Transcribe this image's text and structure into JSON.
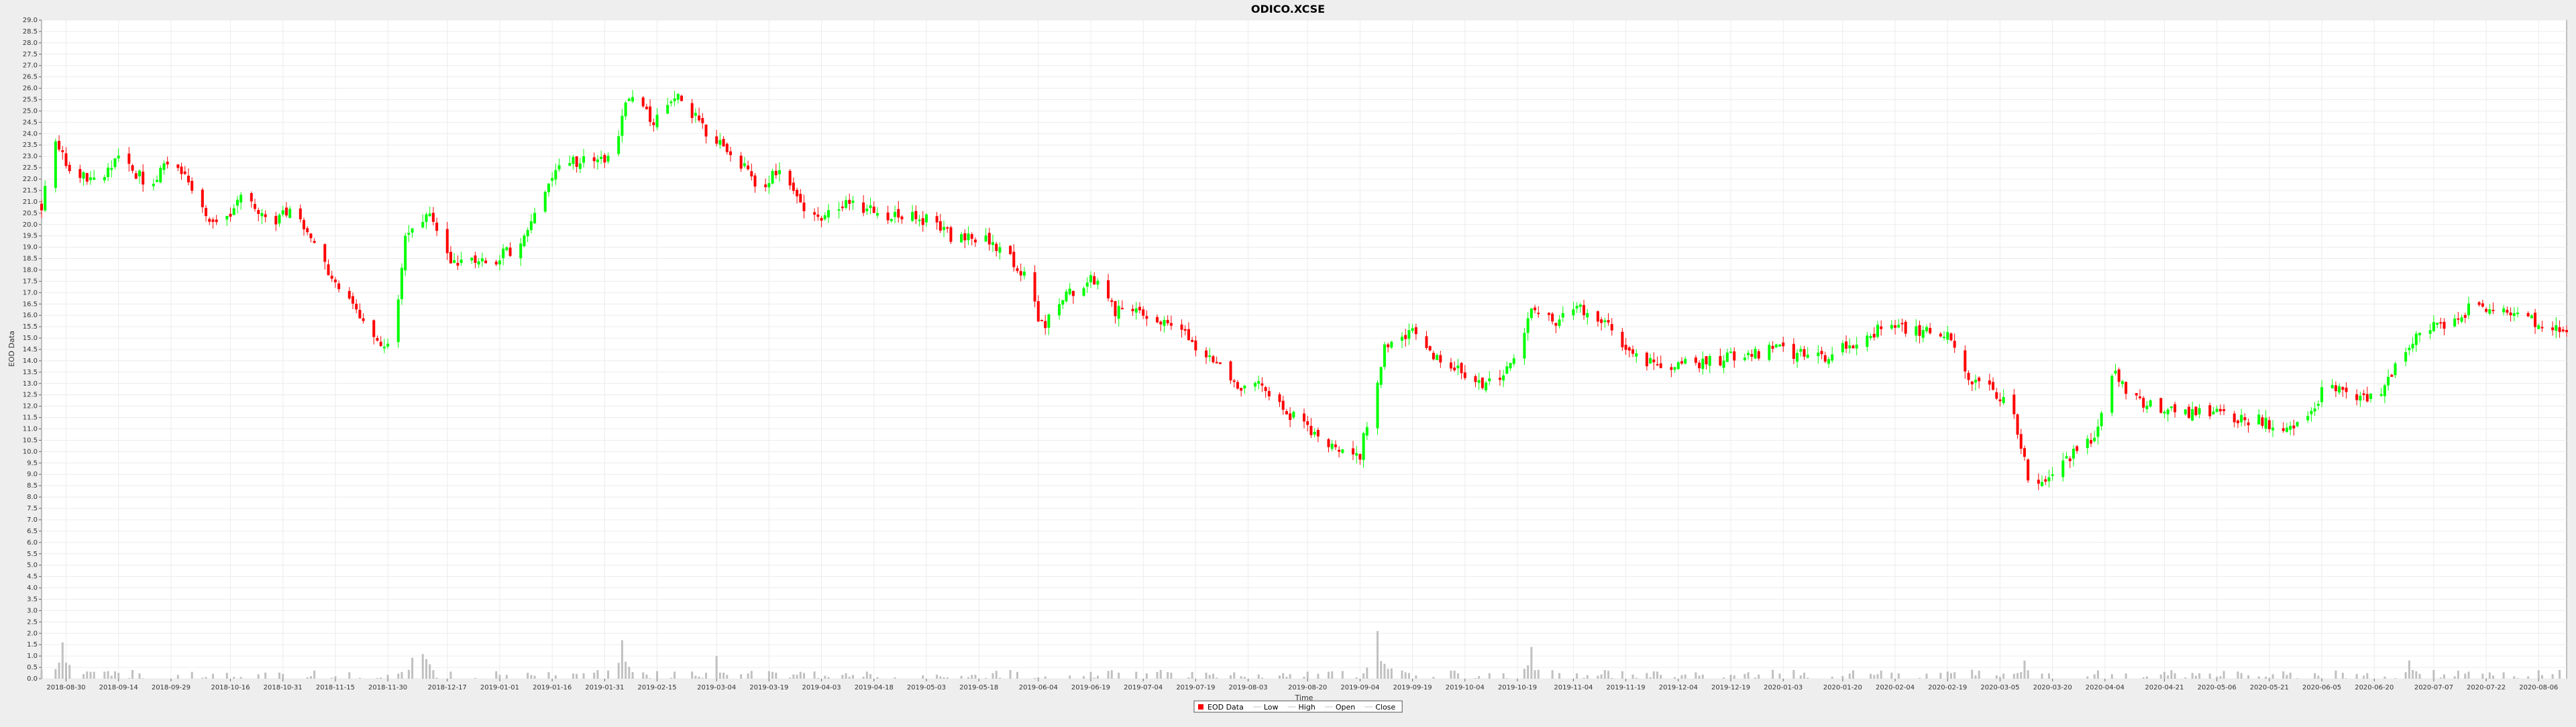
{
  "chart_data": {
    "type": "candlestick",
    "title": "ODICO.XCSE",
    "xlabel": "Time",
    "ylabel": "EOD Data",
    "ylim": [
      0.0,
      29.0
    ],
    "ytick_step": 0.5,
    "xlim": [
      "2018-08-23",
      "2020-08-14"
    ],
    "x_ticks": [
      "2018-08-30",
      "2018-09-14",
      "2018-09-29",
      "2018-10-16",
      "2018-10-31",
      "2018-11-15",
      "2018-11-30",
      "2018-12-17",
      "2019-01-01",
      "2019-01-16",
      "2019-01-31",
      "2019-02-15",
      "2019-03-04",
      "2019-03-19",
      "2019-04-03",
      "2019-04-18",
      "2019-05-03",
      "2019-05-18",
      "2019-06-04",
      "2019-06-19",
      "2019-07-04",
      "2019-07-19",
      "2019-08-03",
      "2019-08-20",
      "2019-09-04",
      "2019-09-19",
      "2019-10-04",
      "2019-10-19",
      "2019-11-04",
      "2019-11-19",
      "2019-12-04",
      "2019-12-19",
      "2020-01-03",
      "2020-01-20",
      "2020-02-04",
      "2020-02-19",
      "2020-03-05",
      "2020-03-20",
      "2020-04-04",
      "2020-04-21",
      "2020-05-06",
      "2020-05-21",
      "2020-06-05",
      "2020-06-20",
      "2020-07-07",
      "2020-07-22",
      "2020-08-06"
    ],
    "price_anchors": [
      [
        "2018-08-23",
        20.8
      ],
      [
        "2018-08-27",
        23.4
      ],
      [
        "2018-09-01",
        22.2
      ],
      [
        "2018-09-08",
        22.0
      ],
      [
        "2018-09-15",
        22.9
      ],
      [
        "2018-09-22",
        21.8
      ],
      [
        "2018-09-29",
        22.7
      ],
      [
        "2018-10-06",
        21.4
      ],
      [
        "2018-10-13",
        19.6
      ],
      [
        "2018-10-20",
        21.5
      ],
      [
        "2018-10-27",
        20.0
      ],
      [
        "2018-11-03",
        20.8
      ],
      [
        "2018-11-10",
        19.0
      ],
      [
        "2018-11-15",
        17.2
      ],
      [
        "2018-11-22",
        16.0
      ],
      [
        "2018-11-28",
        14.4
      ],
      [
        "2018-12-02",
        15.3
      ],
      [
        "2018-12-05",
        19.5
      ],
      [
        "2018-12-12",
        20.5
      ],
      [
        "2018-12-18",
        18.5
      ],
      [
        "2018-12-28",
        18.5
      ],
      [
        "2019-01-05",
        18.8
      ],
      [
        "2019-01-12",
        20.8
      ],
      [
        "2019-01-18",
        22.5
      ],
      [
        "2019-01-25",
        22.9
      ],
      [
        "2019-02-02",
        23.0
      ],
      [
        "2019-02-07",
        25.8
      ],
      [
        "2019-02-14",
        24.6
      ],
      [
        "2019-02-21",
        25.6
      ],
      [
        "2019-03-01",
        24.0
      ],
      [
        "2019-03-08",
        23.2
      ],
      [
        "2019-03-15",
        21.8
      ],
      [
        "2019-03-22",
        22.2
      ],
      [
        "2019-03-29",
        20.5
      ],
      [
        "2019-04-05",
        20.4
      ],
      [
        "2019-04-12",
        21.0
      ],
      [
        "2019-04-19",
        20.5
      ],
      [
        "2019-04-26",
        20.4
      ],
      [
        "2019-05-03",
        20.2
      ],
      [
        "2019-05-10",
        19.5
      ],
      [
        "2019-05-18",
        19.4
      ],
      [
        "2019-05-25",
        18.9
      ],
      [
        "2019-06-01",
        17.5
      ],
      [
        "2019-06-05",
        15.5
      ],
      [
        "2019-06-12",
        16.8
      ],
      [
        "2019-06-19",
        17.7
      ],
      [
        "2019-06-26",
        16.2
      ],
      [
        "2019-07-03",
        16.1
      ],
      [
        "2019-07-10",
        15.8
      ],
      [
        "2019-07-17",
        15.0
      ],
      [
        "2019-07-24",
        14.0
      ],
      [
        "2019-07-31",
        13.0
      ],
      [
        "2019-08-07",
        12.8
      ],
      [
        "2019-08-14",
        11.8
      ],
      [
        "2019-08-21",
        10.8
      ],
      [
        "2019-08-28",
        10.0
      ],
      [
        "2019-09-04",
        9.9
      ],
      [
        "2019-09-08",
        12.5
      ],
      [
        "2019-09-11",
        14.5
      ],
      [
        "2019-09-18",
        15.2
      ],
      [
        "2019-09-25",
        14.2
      ],
      [
        "2019-10-02",
        13.5
      ],
      [
        "2019-10-09",
        13.0
      ],
      [
        "2019-10-16",
        13.5
      ],
      [
        "2019-10-23",
        16.2
      ],
      [
        "2019-10-30",
        15.8
      ],
      [
        "2019-11-06",
        16.2
      ],
      [
        "2019-11-13",
        15.7
      ],
      [
        "2019-11-20",
        14.2
      ],
      [
        "2019-11-27",
        13.8
      ],
      [
        "2019-12-04",
        14.0
      ],
      [
        "2019-12-11",
        13.9
      ],
      [
        "2019-12-18",
        14.1
      ],
      [
        "2019-12-25",
        14.3
      ],
      [
        "2020-01-01",
        14.5
      ],
      [
        "2020-01-08",
        14.3
      ],
      [
        "2020-01-15",
        14.1
      ],
      [
        "2020-01-22",
        14.7
      ],
      [
        "2020-01-29",
        15.3
      ],
      [
        "2020-02-05",
        15.5
      ],
      [
        "2020-02-12",
        15.3
      ],
      [
        "2020-02-19",
        15.2
      ],
      [
        "2020-02-24",
        13.5
      ],
      [
        "2020-03-01",
        12.8
      ],
      [
        "2020-03-08",
        12.2
      ],
      [
        "2020-03-13",
        9.0
      ],
      [
        "2020-03-18",
        8.7
      ],
      [
        "2020-03-25",
        9.8
      ],
      [
        "2020-04-01",
        10.5
      ],
      [
        "2020-04-06",
        13.5
      ],
      [
        "2020-04-12",
        12.3
      ],
      [
        "2020-04-19",
        12.0
      ],
      [
        "2020-04-26",
        11.6
      ],
      [
        "2020-05-03",
        11.9
      ],
      [
        "2020-05-10",
        11.4
      ],
      [
        "2020-05-17",
        11.5
      ],
      [
        "2020-05-24",
        11.0
      ],
      [
        "2020-05-31",
        11.2
      ],
      [
        "2020-06-07",
        13.2
      ],
      [
        "2020-06-14",
        12.2
      ],
      [
        "2020-06-21",
        12.4
      ],
      [
        "2020-06-28",
        14.3
      ],
      [
        "2020-07-05",
        15.4
      ],
      [
        "2020-07-12",
        15.8
      ],
      [
        "2020-07-19",
        16.5
      ],
      [
        "2020-07-26",
        16.3
      ],
      [
        "2020-08-02",
        15.8
      ],
      [
        "2020-08-09",
        15.6
      ],
      [
        "2020-08-14",
        15.1
      ]
    ],
    "volume_spikes": [
      [
        "2018-08-29",
        1.6
      ],
      [
        "2018-12-09",
        2.5
      ],
      [
        "2019-02-05",
        1.7
      ],
      [
        "2019-03-04",
        1.0
      ],
      [
        "2019-09-09",
        2.1
      ],
      [
        "2019-09-14",
        1.4
      ],
      [
        "2019-10-23",
        1.4
      ],
      [
        "2020-03-12",
        0.8
      ],
      [
        "2020-06-30",
        0.8
      ]
    ],
    "volume_base": 0.4,
    "up_color": "#00ff00",
    "down_color": "#ff0000",
    "volume_color": "#c0c0c0",
    "grid": true,
    "legend_position": "bottom-center",
    "legend": [
      {
        "label": "EOD Data",
        "color": "#ff0000"
      },
      {
        "label": "Low",
        "color": "#c0c0c0"
      },
      {
        "label": "High",
        "color": "#c0c0c0"
      },
      {
        "label": "Open",
        "color": "#c0c0c0"
      },
      {
        "label": "Close",
        "color": "#c0c0c0"
      }
    ]
  }
}
